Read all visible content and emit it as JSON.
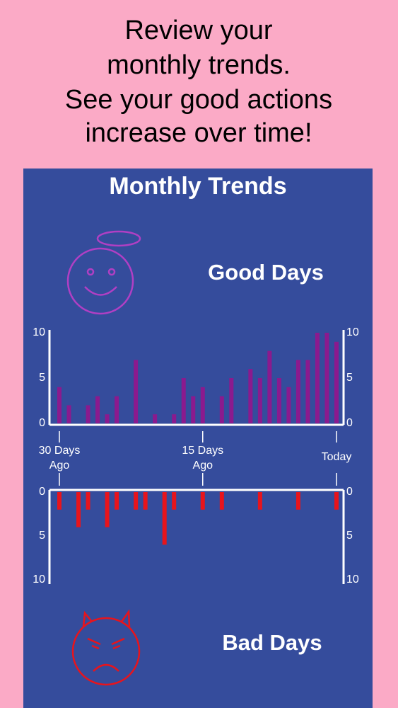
{
  "header": {
    "lines": [
      "Review your",
      "monthly trends.",
      "See your good actions",
      "increase over time!"
    ]
  },
  "panel": {
    "title": "Monthly Trends"
  },
  "chart_data": [
    {
      "type": "bar",
      "title": "Good Days",
      "color": "#8b1a8e",
      "x": [
        0,
        1,
        2,
        3,
        4,
        5,
        6,
        7,
        8,
        9,
        10,
        11,
        12,
        13,
        14,
        15,
        16,
        17,
        18,
        19,
        20,
        21,
        22,
        23,
        24,
        25,
        26,
        27,
        28,
        29
      ],
      "values": [
        4,
        2,
        0,
        2,
        3,
        1,
        3,
        0,
        7,
        0,
        1,
        0,
        1,
        5,
        3,
        4,
        0,
        3,
        5,
        0,
        6,
        5,
        8,
        5,
        4,
        7,
        7,
        10,
        10,
        9
      ],
      "xlim": [
        0,
        29
      ],
      "xticks": [
        {
          "value": 0,
          "label": "30 Days Ago"
        },
        {
          "value": 15,
          "label": "15 Days Ago"
        },
        {
          "value": 29,
          "label": "Today"
        }
      ],
      "ylim": [
        0,
        10
      ],
      "yticks": [
        0,
        5,
        10
      ],
      "inverted": false
    },
    {
      "type": "bar",
      "title": "Bad Days",
      "color": "#e8141c",
      "x": [
        0,
        1,
        2,
        3,
        4,
        5,
        6,
        7,
        8,
        9,
        10,
        11,
        12,
        13,
        14,
        15,
        16,
        17,
        18,
        19,
        20,
        21,
        22,
        23,
        24,
        25,
        26,
        27,
        28,
        29
      ],
      "values": [
        2,
        0,
        4,
        2,
        0,
        4,
        2,
        0,
        2,
        2,
        0,
        6,
        2,
        0,
        0,
        2,
        0,
        2,
        0,
        0,
        0,
        2,
        0,
        0,
        0,
        2,
        0,
        0,
        0,
        2
      ],
      "xlim": [
        0,
        29
      ],
      "ylim": [
        0,
        10
      ],
      "yticks": [
        0,
        5,
        10
      ],
      "inverted": true
    }
  ]
}
